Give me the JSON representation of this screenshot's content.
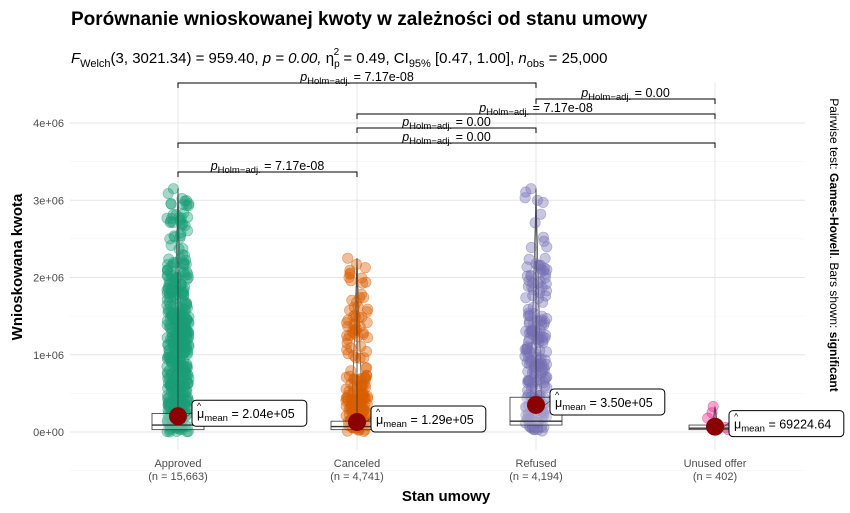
{
  "title": "Porównanie wnioskowanej kwoty w zależności od stanu umowy",
  "subtitle": {
    "stat": "F",
    "stat_sub": "Welch",
    "args": "(3, 3021.34) = 959.40, ",
    "p": "p = 0.00, ",
    "eta": "η",
    "eta_sub": "p",
    "eta_sup": "2",
    "eta_val": " = 0.49, CI",
    "ci_sub": "95%",
    "ci_val": " [0.47, 1.00], ",
    "n": "n",
    "n_sub": "obs",
    "n_val": " = 25,000"
  },
  "caption": {
    "prefix": "Pairwise test: ",
    "test": "Games-Howell",
    "middle": ". Bars shown: ",
    "bars": "significant"
  },
  "chart_data": {
    "type": "scatter",
    "subtype": "box-violin-jitter",
    "xlabel": "Stan umowy",
    "ylabel": "Wnioskowana kwota",
    "ylim": [
      -250000,
      4500000
    ],
    "yticks": [
      0,
      1000000,
      2000000,
      3000000,
      4000000
    ],
    "ytick_labels": [
      "0e+00",
      "1e+06",
      "2e+06",
      "3e+06",
      "4e+06"
    ],
    "grid": true,
    "groups": [
      {
        "name": "Approved",
        "n_label": "(n = 15,663)",
        "color": "#1b9e77",
        "mean": 204000,
        "mean_label": "2.04e+05",
        "max": 3150000,
        "q1": 30000,
        "median": 90000,
        "q3": 240000
      },
      {
        "name": "Canceled",
        "n_label": "(n = 4,741)",
        "color": "#d95f02",
        "mean": 129000,
        "mean_label": "1.29e+05",
        "max": 2250000,
        "q1": 30000,
        "median": 70000,
        "q3": 140000
      },
      {
        "name": "Refused",
        "n_label": "(n = 4,194)",
        "color": "#7570b3",
        "mean": 350000,
        "mean_label": "3.50e+05",
        "max": 3150000,
        "q1": 90000,
        "median": 140000,
        "q3": 450000
      },
      {
        "name": "Unused offer",
        "n_label": "(n = 402)",
        "color": "#e7298a",
        "mean": 69224.64,
        "mean_label": "69224.64",
        "max": 330000,
        "q1": 30000,
        "median": 50000,
        "q3": 90000
      }
    ],
    "mean_label_prefix": "μ",
    "mean_label_sub": "mean",
    "mean_color": "#8b0000",
    "pairwise": [
      {
        "from": 0,
        "to": 1,
        "p_label": "7.17e-08"
      },
      {
        "from": 0,
        "to": 3,
        "p_label": "0.00"
      },
      {
        "from": 1,
        "to": 2,
        "p_label": "0.00"
      },
      {
        "from": 1,
        "to": 3,
        "p_label": "7.17e-08"
      },
      {
        "from": 2,
        "to": 3,
        "p_label": "0.00"
      },
      {
        "from": 0,
        "to": 2,
        "p_label": "7.17e-08"
      }
    ],
    "p_label_prefix": "p",
    "p_label_sub": "Holm−adj."
  }
}
